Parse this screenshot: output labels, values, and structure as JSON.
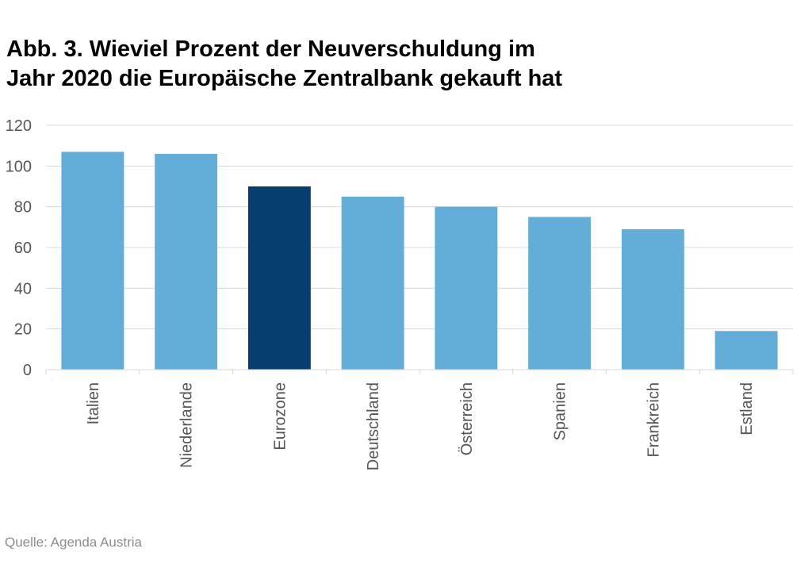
{
  "chart_data": {
    "type": "bar",
    "title_lines": [
      "Abb. 3. Wieviel Prozent der Neuverschuldung im",
      "Jahr 2020 die Europäische Zentralbank gekauft hat"
    ],
    "categories": [
      "Italien",
      "Niederlande",
      "Eurozone",
      "Deutschland",
      "Österreich",
      "Spanien",
      "Frankreich",
      "Estland"
    ],
    "values": [
      107,
      106,
      90,
      85,
      80,
      75,
      69,
      19
    ],
    "highlight_category": "Eurozone",
    "colors": {
      "bar": "#63aed9",
      "highlight": "#053e70",
      "grid": "#d9d9d9",
      "axis_text": "#555555"
    },
    "ylim": [
      0,
      120
    ],
    "yticks": [
      "0",
      "20",
      "40",
      "60",
      "80",
      "100",
      "120"
    ],
    "xlabel": "",
    "ylabel": "",
    "grid": true,
    "legend": "none"
  },
  "source": "Quelle: Agenda Austria"
}
